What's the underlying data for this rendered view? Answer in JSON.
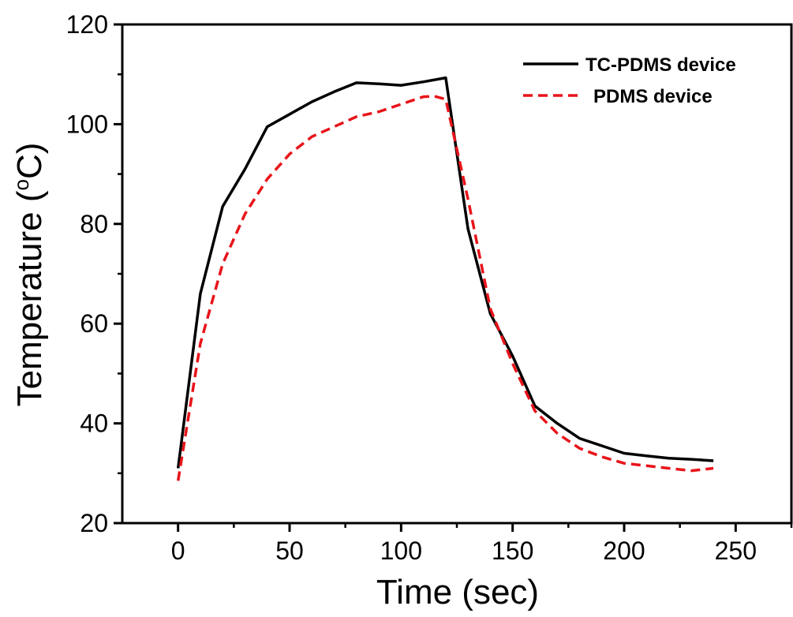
{
  "chart_data": {
    "type": "line",
    "title": "",
    "xlabel": "Time (sec)",
    "ylabel_main": "Temperature (",
    "ylabel_sup": "o",
    "ylabel_unit": "C)",
    "xlim": [
      -25,
      275
    ],
    "ylim": [
      20,
      120
    ],
    "xticks": [
      0,
      50,
      100,
      150,
      200,
      250
    ],
    "yticks": [
      20,
      40,
      60,
      80,
      100,
      120
    ],
    "legend_position": "top-right",
    "series": [
      {
        "name": "TC-PDMS device",
        "color": "#000000",
        "style": "solid",
        "x": [
          0,
          10,
          20,
          30,
          40,
          50,
          60,
          70,
          80,
          90,
          100,
          110,
          120,
          130,
          140,
          150,
          160,
          170,
          180,
          190,
          200,
          210,
          220,
          230,
          240
        ],
        "y": [
          31,
          66,
          83.5,
          91,
          99.5,
          102,
          104.5,
          106.5,
          108.3,
          108.1,
          107.8,
          108.5,
          109.3,
          79,
          62,
          53.5,
          43.5,
          40,
          37,
          35.5,
          34,
          33.5,
          33,
          32.8,
          32.5
        ]
      },
      {
        "name": "PDMS device",
        "color": "#e8141a",
        "style": "dashed",
        "x": [
          0,
          10,
          20,
          30,
          40,
          50,
          60,
          70,
          80,
          90,
          100,
          110,
          115,
          120,
          130,
          140,
          150,
          160,
          170,
          180,
          190,
          200,
          210,
          220,
          230,
          240
        ],
        "y": [
          28.5,
          56,
          72,
          82,
          89,
          94,
          97.5,
          99.5,
          101.5,
          102.5,
          104,
          105.5,
          105.6,
          105,
          85,
          63,
          52,
          42.5,
          38,
          35,
          33.3,
          32,
          31.5,
          31,
          30.5,
          31
        ]
      }
    ]
  }
}
